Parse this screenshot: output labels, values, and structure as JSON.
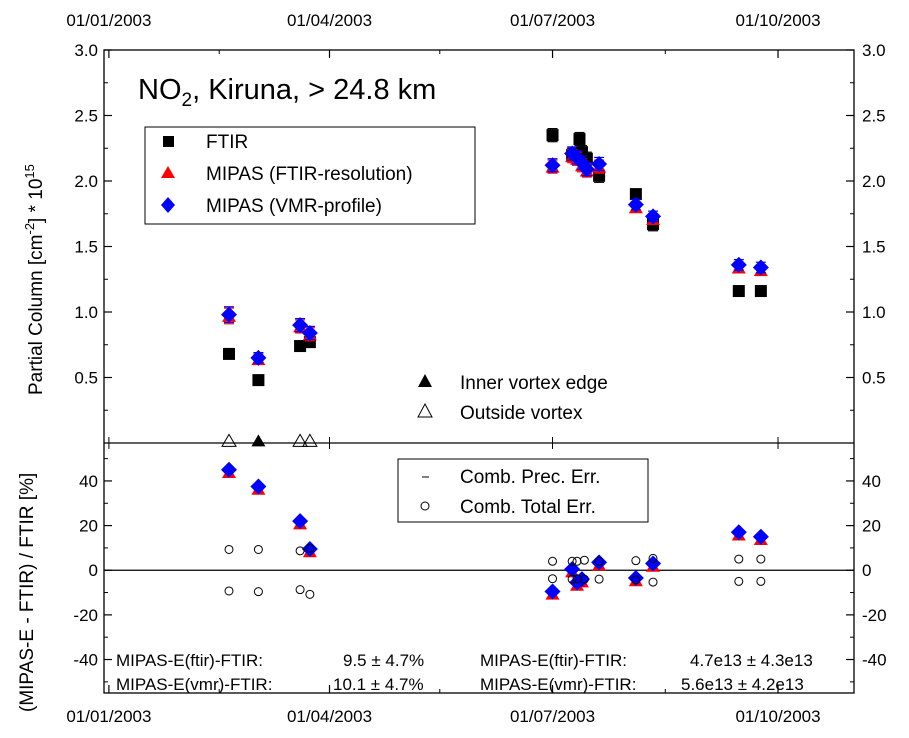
{
  "chart_data": [
    {
      "type": "scatter",
      "panel": "top",
      "title": {
        "parts": [
          {
            "text": "NO",
            "sub": false
          },
          {
            "text": "2",
            "sub": true
          },
          {
            "text": ", Kiruna, > 24.8 km",
            "sub": false
          }
        ]
      },
      "ylabel": {
        "parts": [
          {
            "text": "Partial Column [cm",
            "pos": "base"
          },
          {
            "text": "-2",
            "pos": "sup"
          },
          {
            "text": "] * 10",
            "pos": "base"
          },
          {
            "text": "15",
            "pos": "sup"
          }
        ]
      },
      "ylim": [
        0.0,
        3.0
      ],
      "yticks_left": [
        "0.5",
        "1.0",
        "1.5",
        "2.0",
        "2.5",
        "3.0"
      ],
      "yticks_right": [
        "0.5",
        "1.0",
        "1.5",
        "2.0",
        "2.5",
        "3.0"
      ],
      "xticks": [
        "01/01/2003",
        "01/04/2003",
        "01/07/2003",
        "01/10/2003"
      ],
      "x_axis": "date",
      "xlim": [
        "2002-12-30",
        "2003-11-01"
      ],
      "legend": [
        "FTIR",
        "MIPAS (FTIR-resolution)",
        "MIPAS (VMR-profile)"
      ],
      "legend2": [
        "Inner vortex edge",
        "Outside vortex"
      ],
      "series": [
        {
          "name": "FTIR",
          "marker": "square",
          "color": "#000000",
          "points": [
            {
              "x": "2003-02-19",
              "y": 0.68,
              "err": 0.0
            },
            {
              "x": "2003-03-03",
              "y": 0.48,
              "err": 0.0
            },
            {
              "x": "2003-03-20",
              "y": 0.74,
              "err": 0.02
            },
            {
              "x": "2003-03-24",
              "y": 0.77,
              "err": 0.03
            },
            {
              "x": "2003-07-01",
              "y": 2.35,
              "err": 0.05
            },
            {
              "x": "2003-07-09",
              "y": 2.2,
              "err": 0.05
            },
            {
              "x": "2003-07-12",
              "y": 2.32,
              "err": 0.05
            },
            {
              "x": "2003-07-13",
              "y": 2.22,
              "err": 0.05
            },
            {
              "x": "2003-07-15",
              "y": 2.17,
              "err": 0.05
            },
            {
              "x": "2003-07-20",
              "y": 2.04,
              "err": 0.05
            },
            {
              "x": "2003-08-04",
              "y": 1.9,
              "err": 0.03
            },
            {
              "x": "2003-08-11",
              "y": 1.67,
              "err": 0.05
            },
            {
              "x": "2003-09-15",
              "y": 1.16,
              "err": 0.0
            },
            {
              "x": "2003-09-24",
              "y": 1.16,
              "err": 0.0
            }
          ]
        },
        {
          "name": "MIPAS (FTIR-resolution)",
          "marker": "triangle",
          "color": "#ff0000",
          "points": [
            {
              "x": "2003-02-19",
              "y": 0.97,
              "err": 0.06
            },
            {
              "x": "2003-03-03",
              "y": 0.64,
              "err": 0.04
            },
            {
              "x": "2003-03-20",
              "y": 0.89,
              "err": 0.05
            },
            {
              "x": "2003-03-24",
              "y": 0.83,
              "err": 0.05
            },
            {
              "x": "2003-07-01",
              "y": 2.11,
              "err": 0.05
            },
            {
              "x": "2003-07-09",
              "y": 2.19,
              "err": 0.05
            },
            {
              "x": "2003-07-11",
              "y": 2.17,
              "err": 0.05
            },
            {
              "x": "2003-07-13",
              "y": 2.12,
              "err": 0.05
            },
            {
              "x": "2003-07-15",
              "y": 2.08,
              "err": 0.05
            },
            {
              "x": "2003-07-20",
              "y": 2.11,
              "err": 0.05
            },
            {
              "x": "2003-08-04",
              "y": 1.8,
              "err": 0.04
            },
            {
              "x": "2003-08-11",
              "y": 1.71,
              "err": 0.04
            },
            {
              "x": "2003-09-15",
              "y": 1.34,
              "err": 0.04
            },
            {
              "x": "2003-09-24",
              "y": 1.32,
              "err": 0.04
            }
          ]
        },
        {
          "name": "MIPAS (VMR-profile)",
          "marker": "diamond",
          "color": "#0000ff",
          "points": [
            {
              "x": "2003-02-19",
              "y": 0.98,
              "err": 0.06
            },
            {
              "x": "2003-03-03",
              "y": 0.65,
              "err": 0.04
            },
            {
              "x": "2003-03-20",
              "y": 0.9,
              "err": 0.05
            },
            {
              "x": "2003-03-24",
              "y": 0.84,
              "err": 0.05
            },
            {
              "x": "2003-07-01",
              "y": 2.12,
              "err": 0.05
            },
            {
              "x": "2003-07-09",
              "y": 2.21,
              "err": 0.05
            },
            {
              "x": "2003-07-11",
              "y": 2.18,
              "err": 0.05
            },
            {
              "x": "2003-07-13",
              "y": 2.14,
              "err": 0.05
            },
            {
              "x": "2003-07-15",
              "y": 2.09,
              "err": 0.05
            },
            {
              "x": "2003-07-20",
              "y": 2.13,
              "err": 0.05
            },
            {
              "x": "2003-08-04",
              "y": 1.82,
              "err": 0.04
            },
            {
              "x": "2003-08-11",
              "y": 1.73,
              "err": 0.04
            },
            {
              "x": "2003-09-15",
              "y": 1.36,
              "err": 0.04
            },
            {
              "x": "2003-09-24",
              "y": 1.34,
              "err": 0.04
            }
          ]
        },
        {
          "name": "Inner vortex edge",
          "marker": "triangle",
          "color": "#000000",
          "points": [
            {
              "x": "2003-03-03",
              "y": 0.02
            }
          ]
        },
        {
          "name": "Outside vortex",
          "marker": "triangle-open",
          "color": "#000000",
          "points": [
            {
              "x": "2003-02-19",
              "y": 0.02
            },
            {
              "x": "2003-03-20",
              "y": 0.02
            },
            {
              "x": "2003-03-24",
              "y": 0.02
            }
          ]
        }
      ]
    },
    {
      "type": "scatter",
      "panel": "bottom",
      "ylabel": "(MIPAS-E - FTIR) / FTIR [%]",
      "ylim": [
        -55,
        57
      ],
      "yticks_left": [
        "-40",
        "-20",
        "0",
        "20",
        "40"
      ],
      "yticks_right": [
        "-40",
        "-20",
        "0",
        "20",
        "40"
      ],
      "xticks": [
        "01/01/2003",
        "01/04/2003",
        "01/07/2003",
        "01/10/2003"
      ],
      "x_axis": "date",
      "xlim": [
        "2002-12-30",
        "2003-11-01"
      ],
      "legend": [
        "Comb. Prec. Err.",
        "Comb. Total Err."
      ],
      "series": [
        {
          "name": "MIPAS (FTIR-resolution)",
          "marker": "triangle",
          "color": "#ff0000",
          "points": [
            {
              "x": "2003-02-19",
              "y": 44
            },
            {
              "x": "2003-03-03",
              "y": 36.5
            },
            {
              "x": "2003-03-20",
              "y": 21
            },
            {
              "x": "2003-03-24",
              "y": 8.5
            },
            {
              "x": "2003-07-01",
              "y": -10.5
            },
            {
              "x": "2003-07-09",
              "y": -0.5
            },
            {
              "x": "2003-07-11",
              "y": -6.5
            },
            {
              "x": "2003-07-13",
              "y": -5
            },
            {
              "x": "2003-07-20",
              "y": 2.5
            },
            {
              "x": "2003-08-04",
              "y": -4.5
            },
            {
              "x": "2003-08-11",
              "y": 2
            },
            {
              "x": "2003-09-15",
              "y": 16
            },
            {
              "x": "2003-09-24",
              "y": 14
            }
          ]
        },
        {
          "name": "MIPAS (VMR-profile)",
          "marker": "diamond",
          "color": "#0000ff",
          "points": [
            {
              "x": "2003-02-19",
              "y": 45
            },
            {
              "x": "2003-03-03",
              "y": 37.5
            },
            {
              "x": "2003-03-20",
              "y": 22
            },
            {
              "x": "2003-03-24",
              "y": 9.5
            },
            {
              "x": "2003-07-01",
              "y": -9.5
            },
            {
              "x": "2003-07-09",
              "y": 0.5
            },
            {
              "x": "2003-07-11",
              "y": -5.5
            },
            {
              "x": "2003-07-13",
              "y": -4
            },
            {
              "x": "2003-07-20",
              "y": 3.5
            },
            {
              "x": "2003-08-04",
              "y": -3.5
            },
            {
              "x": "2003-08-11",
              "y": 3
            },
            {
              "x": "2003-09-15",
              "y": 17
            },
            {
              "x": "2003-09-24",
              "y": 15
            }
          ]
        },
        {
          "name": "Comb. Total Err.",
          "marker": "circle-open",
          "color": "#000000",
          "points": [
            {
              "x": "2003-02-19",
              "y": 9.3
            },
            {
              "x": "2003-02-19",
              "y": -9.3
            },
            {
              "x": "2003-03-03",
              "y": 9.3
            },
            {
              "x": "2003-03-03",
              "y": -9.6
            },
            {
              "x": "2003-03-20",
              "y": 8.7
            },
            {
              "x": "2003-03-20",
              "y": -8.7
            },
            {
              "x": "2003-03-24",
              "y": 9.8
            },
            {
              "x": "2003-03-24",
              "y": -10.8
            },
            {
              "x": "2003-07-01",
              "y": 4
            },
            {
              "x": "2003-07-01",
              "y": -3.8
            },
            {
              "x": "2003-07-09",
              "y": 4
            },
            {
              "x": "2003-07-09",
              "y": -4
            },
            {
              "x": "2003-07-11",
              "y": 4
            },
            {
              "x": "2003-07-11",
              "y": -3.8
            },
            {
              "x": "2003-07-14",
              "y": 4.5
            },
            {
              "x": "2003-07-14",
              "y": -4
            },
            {
              "x": "2003-07-20",
              "y": 4
            },
            {
              "x": "2003-07-20",
              "y": -4
            },
            {
              "x": "2003-08-04",
              "y": 4.3
            },
            {
              "x": "2003-08-04",
              "y": -4.3
            },
            {
              "x": "2003-08-11",
              "y": 5.3
            },
            {
              "x": "2003-08-11",
              "y": -5.3
            },
            {
              "x": "2003-09-15",
              "y": 5
            },
            {
              "x": "2003-09-15",
              "y": -5
            },
            {
              "x": "2003-09-24",
              "y": 5
            },
            {
              "x": "2003-09-24",
              "y": -5
            }
          ]
        }
      ],
      "annotations": [
        {
          "label": "MIPAS-E(ftir)-FTIR:",
          "value": "9.5 ± 4.7%"
        },
        {
          "label": "MIPAS-E(vmr)-FTIR:",
          "value": "10.1 ± 4.7%"
        },
        {
          "label": "MIPAS-E(ftir)-FTIR:",
          "value": "4.7e13 ± 4.3e13"
        },
        {
          "label": "MIPAS-E(vmr)-FTIR:",
          "value": "5.6e13 ± 4.2e13"
        }
      ]
    }
  ]
}
